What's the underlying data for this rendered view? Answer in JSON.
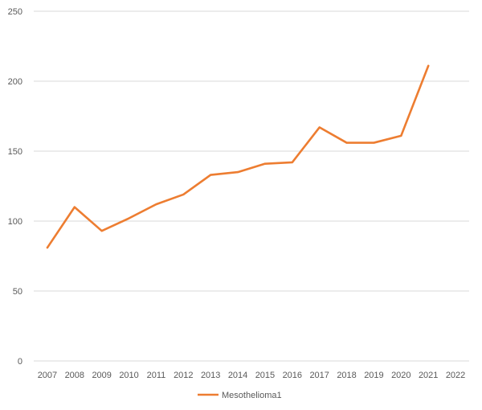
{
  "chart_data": {
    "type": "line",
    "title": "",
    "xlabel": "",
    "ylabel": "",
    "categories": [
      "2007",
      "2008",
      "2009",
      "2010",
      "2011",
      "2012",
      "2013",
      "2014",
      "2015",
      "2016",
      "2017",
      "2018",
      "2019",
      "2020",
      "2021",
      "2022"
    ],
    "series": [
      {
        "name": "Mesothelioma1",
        "color": "#ED7D31",
        "values": [
          81,
          110,
          93,
          102,
          112,
          119,
          133,
          135,
          141,
          142,
          167,
          156,
          156,
          161,
          211,
          null
        ]
      }
    ],
    "ylim": [
      0,
      250
    ],
    "yticks": [
      0,
      50,
      100,
      150,
      200,
      250
    ],
    "grid": true,
    "legend_position": "bottom",
    "colors": {
      "grid": "#D9D9D9",
      "axis": "#D9D9D9",
      "text": "#595959"
    }
  }
}
